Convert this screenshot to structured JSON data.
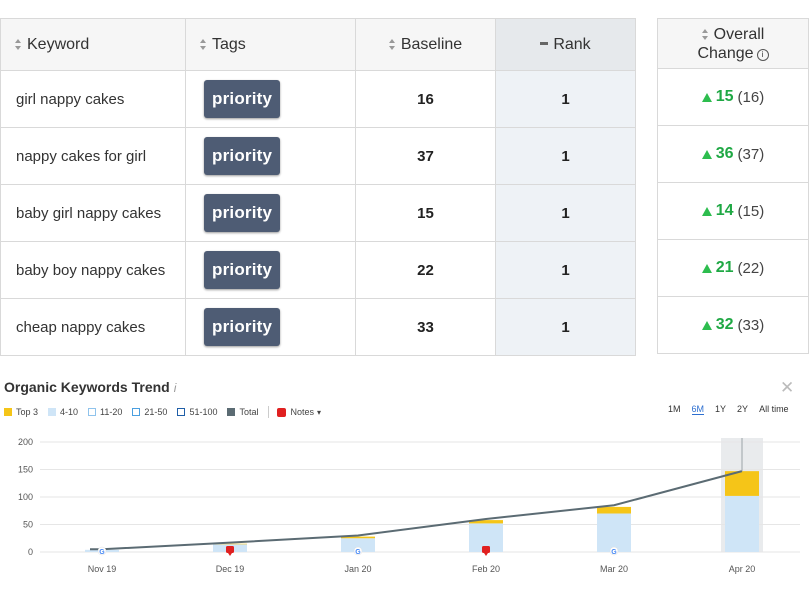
{
  "table": {
    "headers": {
      "keyword": "Keyword",
      "tags": "Tags",
      "baseline": "Baseline",
      "rank": "Rank"
    },
    "rows": [
      {
        "keyword": "girl nappy cakes",
        "tag": "priority",
        "baseline": "16",
        "rank": "1",
        "change": "15",
        "change_paren": "(16)"
      },
      {
        "keyword": "nappy cakes for girl",
        "tag": "priority",
        "baseline": "37",
        "rank": "1",
        "change": "36",
        "change_paren": "(37)"
      },
      {
        "keyword": "baby girl nappy cakes",
        "tag": "priority",
        "baseline": "15",
        "rank": "1",
        "change": "14",
        "change_paren": "(15)"
      },
      {
        "keyword": "baby boy nappy cakes",
        "tag": "priority",
        "baseline": "22",
        "rank": "1",
        "change": "21",
        "change_paren": "(22)"
      },
      {
        "keyword": "cheap nappy cakes",
        "tag": "priority",
        "baseline": "33",
        "rank": "1",
        "change": "32",
        "change_paren": "(33)"
      }
    ]
  },
  "overall_change": {
    "header_line1": "Overall",
    "header_line2": "Change",
    "info_icon": "i"
  },
  "trend": {
    "title": "Organic Keywords Trend",
    "info_icon": "i",
    "close_icon": "✕",
    "legend": [
      {
        "label": "Top 3",
        "color": "#f5c518",
        "filled": true
      },
      {
        "label": "4-10",
        "color": "#cfe5f7",
        "filled": true
      },
      {
        "label": "11-20",
        "color": "#8fc3ec",
        "filled": false
      },
      {
        "label": "21-50",
        "color": "#4a9fe0",
        "filled": false
      },
      {
        "label": "51-100",
        "color": "#1f5fa8",
        "filled": false
      },
      {
        "label": "Total",
        "color": "#5b6b73",
        "filled": true
      }
    ],
    "notes_label": "Notes",
    "periods": [
      "1M",
      "6M",
      "1Y",
      "2Y",
      "All time"
    ],
    "active_period": "6M"
  },
  "chart_data": {
    "type": "bar",
    "categories": [
      "Nov 19",
      "Dec 19",
      "Jan 20",
      "Feb 20",
      "Mar 20",
      "Apr 20"
    ],
    "series": [
      {
        "name": "Top 3",
        "values": [
          0,
          1,
          3,
          6,
          12,
          45
        ],
        "color": "#f5c518"
      },
      {
        "name": "4-10",
        "values": [
          4,
          14,
          25,
          52,
          70,
          102
        ],
        "color": "#cfe5f7"
      }
    ],
    "total_line": [
      5,
      17,
      30,
      60,
      85,
      147
    ],
    "y_ticks": [
      0,
      50,
      100,
      150,
      200
    ],
    "ylim": [
      0,
      200
    ],
    "markers": [
      {
        "category": "Nov 19",
        "kind": "google"
      },
      {
        "category": "Dec 19",
        "kind": "note"
      },
      {
        "category": "Jan 20",
        "kind": "google"
      },
      {
        "category": "Feb 20",
        "kind": "note"
      },
      {
        "category": "Mar 20",
        "kind": "google"
      }
    ],
    "highlight_category": "Apr 20",
    "grid": true
  }
}
